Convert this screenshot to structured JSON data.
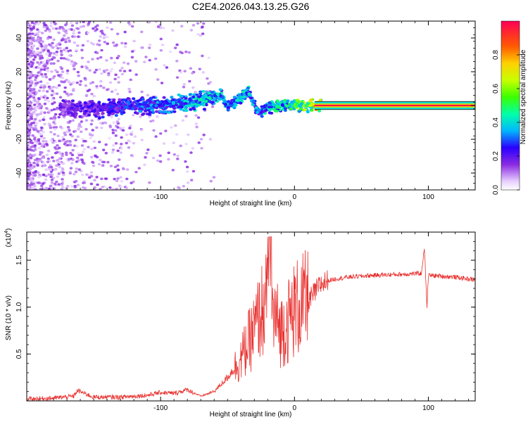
{
  "title": "C2E4.2026.043.13.25.G26",
  "chart_data": [
    {
      "type": "heatmap",
      "xlabel": "Height of straight line (km)",
      "ylabel": "Frequency (Hz)",
      "xlim": [
        -200,
        135
      ],
      "ylim": [
        -50,
        50
      ],
      "xticks": [
        "-100",
        "0",
        "100"
      ],
      "xtick_values": [
        -100,
        0,
        100
      ],
      "yticks": [
        "-40",
        "-20",
        "0",
        "20",
        "40"
      ],
      "ytick_values": [
        -40,
        -20,
        0,
        20,
        40
      ],
      "colorbar": {
        "label": "Normalized spectral amplitude",
        "range": [
          0.0,
          1.0
        ],
        "ticks": [
          "0.0",
          "0.2",
          "0.4",
          "0.6",
          "0.8"
        ],
        "tick_values": [
          0.0,
          0.2,
          0.4,
          0.6,
          0.8
        ]
      },
      "ridge": {
        "x": [
          -170,
          -150,
          -130,
          -110,
          -90,
          -70,
          -55,
          -50,
          -45,
          -40,
          -35,
          -30,
          -25,
          -20,
          -10,
          0,
          10,
          20,
          60,
          100,
          135
        ],
        "y": [
          -2,
          -2,
          -1,
          0,
          1,
          3,
          6,
          0,
          2,
          5,
          9,
          0,
          -4,
          -1,
          0,
          0,
          0,
          0,
          0,
          0,
          0
        ],
        "amplitude": [
          0.2,
          0.25,
          0.3,
          0.35,
          0.4,
          0.45,
          0.45,
          0.4,
          0.4,
          0.45,
          0.45,
          0.4,
          0.4,
          0.45,
          0.5,
          0.6,
          0.7,
          0.95,
          0.98,
          0.98,
          0.98
        ]
      }
    },
    {
      "type": "line",
      "xlabel": "Height of straight line (km)",
      "ylabel": "SNR (10 * v/v)",
      "exponent_label": "(x10",
      "exponent_sup": "4",
      "exponent_close": ")",
      "xlim": [
        -200,
        135
      ],
      "ylim": [
        0,
        1.8
      ],
      "xticks": [
        "-100",
        "0",
        "100"
      ],
      "xtick_values": [
        -100,
        0,
        100
      ],
      "yticks": [
        "0.5",
        "1.0",
        "1.5"
      ],
      "ytick_values": [
        0.5,
        1.0,
        1.5
      ],
      "series": [
        {
          "name": "SNR",
          "color": "#e8302e",
          "x": [
            -200,
            -180,
            -165,
            -162,
            -150,
            -130,
            -110,
            -100,
            -90,
            -80,
            -70,
            -60,
            -50,
            -40,
            -35,
            -30,
            -25,
            -20,
            -15,
            -10,
            -5,
            0,
            5,
            10,
            15,
            20,
            25,
            30,
            40,
            60,
            80,
            95,
            97,
            99,
            100,
            110,
            120,
            135
          ],
          "y": [
            0.02,
            0.03,
            0.05,
            0.11,
            0.04,
            0.04,
            0.06,
            0.09,
            0.08,
            0.12,
            0.05,
            0.1,
            0.25,
            0.45,
            0.6,
            0.75,
            0.95,
            1.05,
            0.9,
            0.75,
            0.85,
            0.98,
            1.02,
            1.05,
            1.15,
            1.25,
            1.28,
            1.3,
            1.32,
            1.34,
            1.35,
            1.36,
            1.65,
            1.0,
            1.34,
            1.33,
            1.32,
            1.29
          ]
        }
      ]
    }
  ]
}
